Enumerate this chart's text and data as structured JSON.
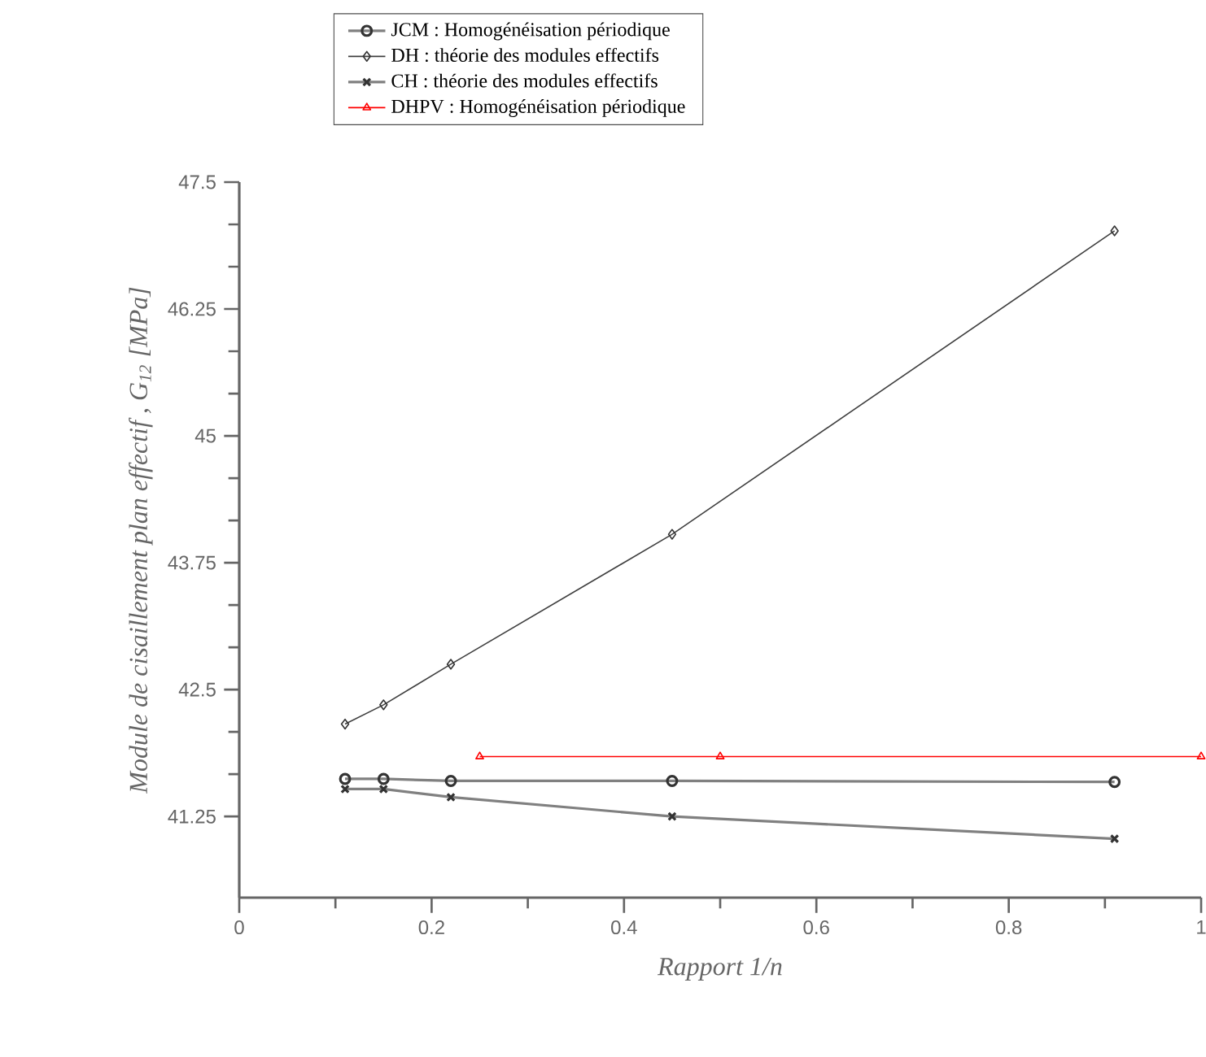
{
  "chart_data": {
    "type": "line",
    "xlabel": "Rapport 1/n",
    "ylabel": "Module de cisaillement plan effectif , G$_{12}$ [MPa]",
    "x": [
      0.11,
      0.15,
      0.22,
      0.45,
      0.91
    ],
    "xlim": [
      0,
      1
    ],
    "ylim": [
      40.45,
      47.5
    ],
    "xticks": [
      0,
      0.2,
      0.4,
      0.6,
      0.8,
      1
    ],
    "yticks": [
      41.25,
      42.5,
      43.75,
      45,
      46.25,
      47.5
    ],
    "legend": "top",
    "series": [
      {
        "name": "JCM : Homogénéisation périodique",
        "color": "#808080",
        "marker": "circle",
        "values": [
          41.62,
          41.62,
          41.6,
          41.6,
          41.59
        ]
      },
      {
        "name": "DH : théorie des modules effectifs",
        "color": "#404040",
        "marker": "diamond",
        "values": [
          42.16,
          42.35,
          42.75,
          44.03,
          47.02
        ]
      },
      {
        "name": "CH : théorie des modules effectifs",
        "color": "#808080",
        "marker": "cross",
        "values": [
          41.52,
          41.52,
          41.44,
          41.25,
          41.03
        ]
      },
      {
        "name": "DHPV : Homogénéisation périodique",
        "color": "#ff0000",
        "marker": "triangle",
        "x": [
          0.25,
          0.5,
          1.0
        ],
        "values": [
          41.84,
          41.84,
          41.84
        ]
      }
    ]
  }
}
